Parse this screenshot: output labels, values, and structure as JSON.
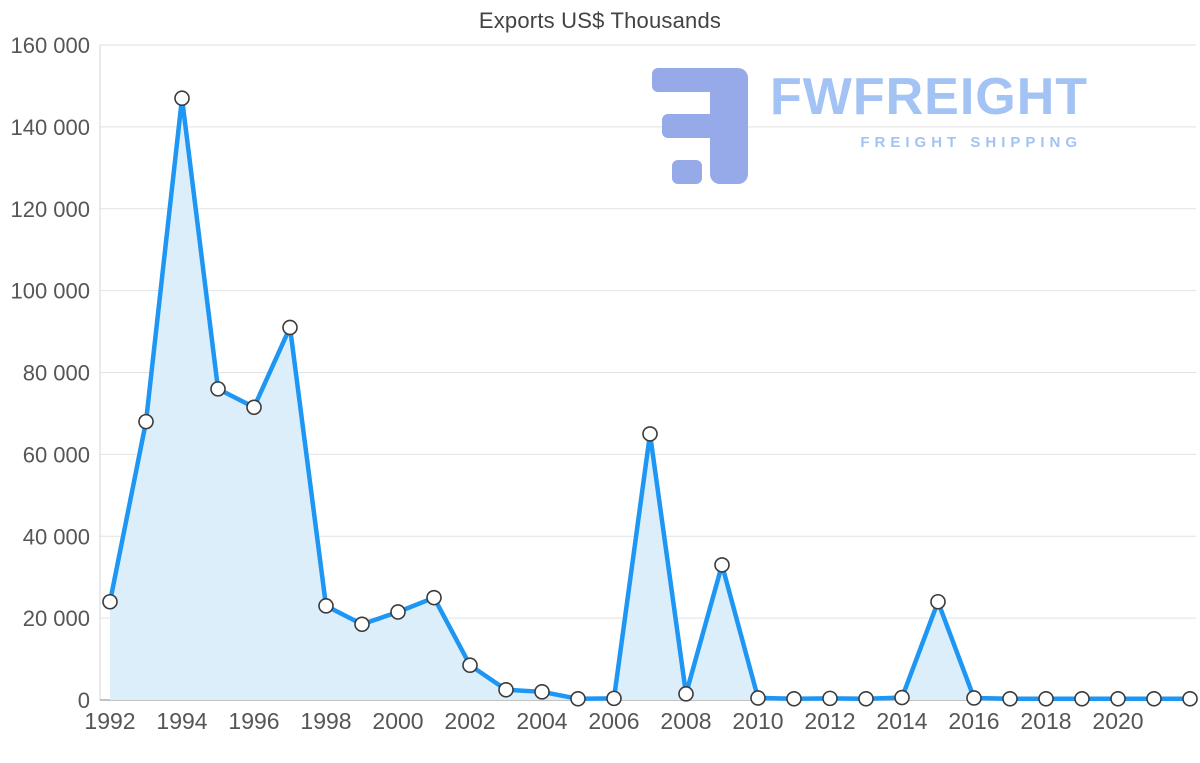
{
  "title": "Exports US$ Thousands",
  "watermark": {
    "brand": "FWFREIGHT",
    "tagline": "FREIGHT SHIPPING"
  },
  "chart_data": {
    "type": "area",
    "title": "Exports US$ Thousands",
    "xlabel": "",
    "ylabel": "",
    "x": [
      1992,
      1993,
      1994,
      1995,
      1996,
      1997,
      1998,
      1999,
      2000,
      2001,
      2002,
      2003,
      2004,
      2005,
      2006,
      2007,
      2008,
      2009,
      2010,
      2011,
      2012,
      2013,
      2014,
      2015,
      2016,
      2017,
      2018,
      2019,
      2020,
      2021,
      2022
    ],
    "values": [
      24000,
      68000,
      147000,
      76000,
      71500,
      91000,
      23000,
      18500,
      21500,
      25000,
      8500,
      2500,
      2000,
      300,
      400,
      65000,
      1500,
      33000,
      500,
      300,
      400,
      300,
      600,
      24000,
      500,
      300,
      300,
      300,
      300,
      300,
      300
    ],
    "ylim": [
      0,
      160000
    ],
    "y_ticks": {
      "values": [
        0,
        20000,
        40000,
        60000,
        80000,
        100000,
        120000,
        140000,
        160000
      ],
      "labels": [
        "0",
        "20 000",
        "40 000",
        "60 000",
        "80 000",
        "100 000",
        "120 000",
        "140 000",
        "160 000"
      ]
    },
    "x_tick_years": [
      1992,
      1994,
      1996,
      1998,
      2000,
      2002,
      2004,
      2006,
      2008,
      2010,
      2012,
      2014,
      2016,
      2018,
      2020
    ],
    "grid": "horizontal",
    "legend": "none",
    "colors": {
      "line": "#1e96f4",
      "fill": "#ddeefb",
      "marker_fill": "#ffffff",
      "marker_stroke": "#3b3b3b",
      "grid": "#e2e2e2",
      "axis_left": "#d6d6d6",
      "axis_bottom": "#adadad",
      "tick_text": "#565656",
      "title_text": "#434343",
      "watermark_glyph": "#96a9e8",
      "watermark_text": "#a2c3f3"
    }
  }
}
